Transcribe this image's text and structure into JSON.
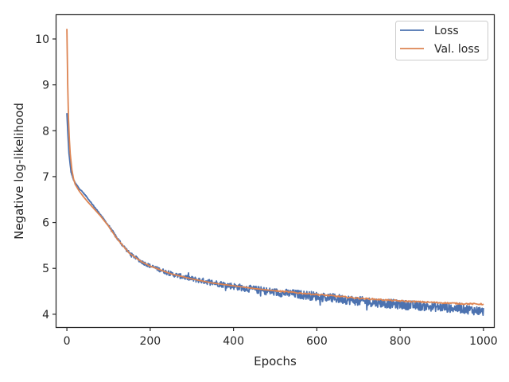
{
  "chart_data": {
    "type": "line",
    "title": "",
    "xlabel": "Epochs",
    "ylabel": "Negative log-likelihood",
    "xlim": [
      -25,
      1025
    ],
    "ylim": [
      3.72,
      10.52
    ],
    "xticks": [
      0,
      200,
      400,
      600,
      800,
      1000
    ],
    "yticks": [
      4,
      5,
      6,
      7,
      8,
      9,
      10
    ],
    "grid": false,
    "legend_position": "top-right",
    "series": [
      {
        "name": "Loss",
        "color": "#4c72b0",
        "noise": "high-frequency jitter, amplitude growing to about ±0.1 after epoch 400",
        "x": [
          0,
          2,
          5,
          10,
          15,
          20,
          30,
          40,
          50,
          60,
          80,
          100,
          120,
          150,
          180,
          200,
          250,
          300,
          350,
          400,
          450,
          500,
          550,
          600,
          650,
          700,
          750,
          800,
          850,
          900,
          950,
          1000
        ],
        "y": [
          8.38,
          8.0,
          7.5,
          7.1,
          6.95,
          6.86,
          6.74,
          6.64,
          6.53,
          6.41,
          6.18,
          5.93,
          5.66,
          5.33,
          5.14,
          5.05,
          4.88,
          4.77,
          4.69,
          4.61,
          4.54,
          4.48,
          4.44,
          4.39,
          4.34,
          4.29,
          4.25,
          4.21,
          4.18,
          4.15,
          4.12,
          4.06
        ]
      },
      {
        "name": "Val. loss",
        "color": "#dd8452",
        "x": [
          0,
          1,
          2,
          3,
          5,
          8,
          12,
          16,
          20,
          30,
          40,
          50,
          60,
          80,
          100,
          120,
          150,
          180,
          200,
          250,
          300,
          350,
          400,
          450,
          500,
          550,
          600,
          650,
          700,
          750,
          800,
          850,
          900,
          950,
          1000
        ],
        "y": [
          10.22,
          9.6,
          9.0,
          8.5,
          7.95,
          7.5,
          7.15,
          6.95,
          6.83,
          6.68,
          6.56,
          6.45,
          6.35,
          6.15,
          5.92,
          5.65,
          5.33,
          5.14,
          5.05,
          4.88,
          4.77,
          4.68,
          4.62,
          4.56,
          4.51,
          4.47,
          4.43,
          4.39,
          4.35,
          4.32,
          4.29,
          4.27,
          4.25,
          4.23,
          4.22
        ]
      }
    ]
  }
}
